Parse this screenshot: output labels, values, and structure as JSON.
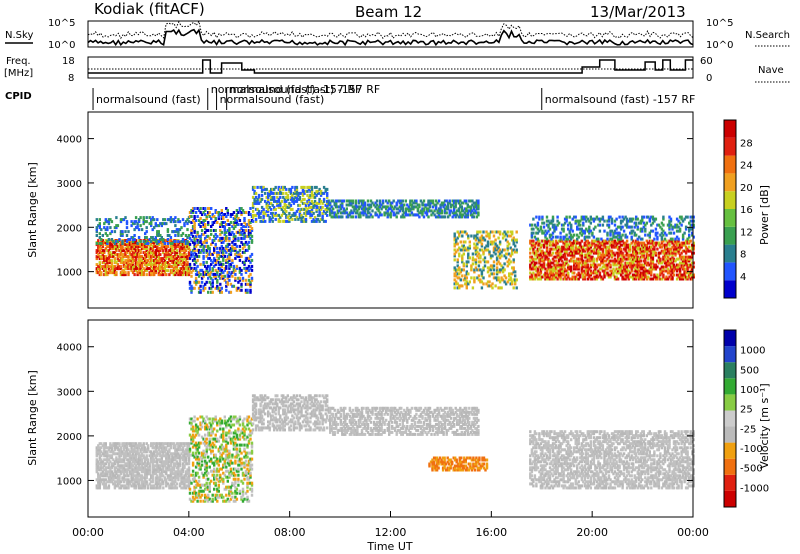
{
  "header": {
    "station": "Kodiak (fitACF)",
    "beam": "Beam 12",
    "date": "13/Mar/2013"
  },
  "strips": {
    "nsky_label": "N.Sky",
    "nsearch_label": "N.Search",
    "freq_label_1": "Freq.",
    "freq_label_2": "[MHz]",
    "nave_label": "Nave",
    "cpid_label": "CPID",
    "noise_ticks": [
      "10^5",
      "10^0"
    ],
    "freq_ticks": [
      "18",
      "8"
    ],
    "nave_ticks": [
      "60",
      "0"
    ],
    "cpid_labels": [
      {
        "time": 0.2,
        "text": "normalsound (fast)"
      },
      {
        "time": 4.75,
        "text": "normalsound (fast) -157 RF"
      },
      {
        "time": 5.1,
        "text": "normalsound (fast)"
      },
      {
        "time": 5.5,
        "text": "normalsound (fast) -157 RF"
      },
      {
        "time": 18.0,
        "text": "normalsound (fast) -157 RF"
      }
    ]
  },
  "colors": {
    "power_scale": [
      "#0000cc",
      "#2255ff",
      "#2a7f8f",
      "#3aa050",
      "#66c040",
      "#c8d020",
      "#f0a020",
      "#f07010",
      "#e02010",
      "#cc0000"
    ],
    "velocity_scale": [
      "#0000aa",
      "#2244cc",
      "#2a7f60",
      "#33aa33",
      "#88cc44",
      "#cccccc",
      "#bbbbbb",
      "#f0a010",
      "#f07010",
      "#e02010",
      "#cc0000"
    ],
    "scatter_gray": "#c0c0c0"
  },
  "chart_data": [
    {
      "type": "heatmap",
      "name": "power-panel",
      "xlabel": "",
      "ylabel": "Slant Range [km]",
      "xlim": [
        0,
        24
      ],
      "ylim": [
        180,
        4600
      ],
      "yticks": [
        1000,
        2000,
        3000,
        4000
      ],
      "colorbar_label": "Power [dB]",
      "colorbar_range": [
        0,
        32
      ],
      "colorbar_ticks": [
        "4",
        "8",
        "12",
        "16",
        "20",
        "24",
        "28"
      ]
    },
    {
      "type": "heatmap",
      "name": "velocity-panel",
      "xlabel": "Time UT",
      "ylabel": "Slant Range [km]",
      "xlim": [
        0,
        24
      ],
      "ylim": [
        180,
        4600
      ],
      "yticks": [
        1000,
        2000,
        3000,
        4000
      ],
      "xticks": [
        "00:00",
        "04:00",
        "08:00",
        "12:00",
        "16:00",
        "20:00",
        "00:00"
      ],
      "colorbar_label": "Velocity [m s⁻¹]",
      "colorbar_ticks": [
        "1000",
        "500",
        "100",
        "25",
        "-25",
        "-100",
        "-500",
        "-1000"
      ]
    }
  ]
}
